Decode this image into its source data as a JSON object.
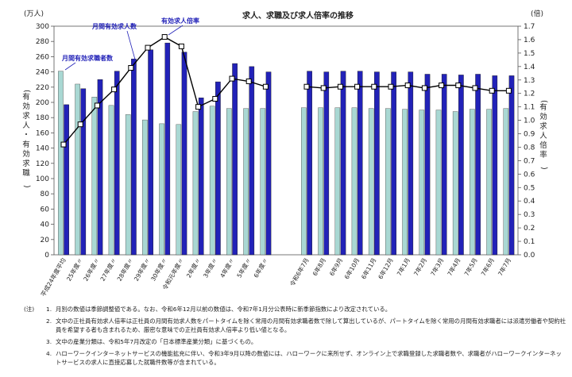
{
  "chart_data": {
    "type": "bar",
    "title": "求人、求職及び求人倍率の推移",
    "left_unit": "(万人)",
    "right_unit": "(倍)",
    "ylabel_left": "(有効求人・有効求職)",
    "ylabel_right": "(有効求人倍率)",
    "ylim_left": [
      0,
      300
    ],
    "ylim_right": [
      0,
      1.7
    ],
    "left_ticks": [
      0,
      20,
      40,
      60,
      80,
      100,
      120,
      140,
      160,
      180,
      200,
      220,
      240,
      260,
      280,
      300
    ],
    "right_ticks": [
      "0.0",
      "0.1",
      "0.2",
      "0.3",
      "0.4",
      "0.5",
      "0.6",
      "0.7",
      "0.8",
      "0.9",
      "1.0",
      "1.1",
      "1.2",
      "1.3",
      "1.4",
      "1.5",
      "1.6",
      "1.7"
    ],
    "categories": [
      "平成24年度平均",
      "25年度〃",
      "26年度〃",
      "27年度〃",
      "28年度〃",
      "29年度〃",
      "30年度〃",
      "令和元年度〃",
      "2年度〃",
      "3年度〃",
      "4年度〃",
      "5年度〃",
      "6年度〃",
      "令和6年7月",
      "8月",
      "9月",
      "10月",
      "11月",
      "12月",
      "令和7年1月",
      "2月",
      "3月",
      "4月",
      "5月",
      "6月",
      "7月"
    ],
    "x_labels": [
      "平成24年度平均",
      "25年度〃",
      "26年度〃",
      "27年度〃",
      "28年度〃",
      "29年度〃",
      "30年度〃",
      "令和元年度〃",
      "2年度〃",
      "3年度〃",
      "4年度〃",
      "5年度〃",
      "6年度〃",
      "令和6年7月",
      "6年8月",
      "6年9月",
      "6年10月",
      "6年11月",
      "6年12月",
      "7年1月",
      "7年2月",
      "7年3月",
      "7年4月",
      "7年5月",
      "7年6月",
      "7年7月"
    ],
    "series": [
      {
        "name": "月間有効求職者数",
        "axis": "left",
        "color": "#a9d8d3",
        "values": [
          241,
          224,
          207,
          196,
          184,
          177,
          172,
          171,
          188,
          195,
          192,
          192,
          192,
          193,
          193,
          193,
          193,
          192,
          192,
          191,
          190,
          190,
          188,
          191,
          191,
          192
        ]
      },
      {
        "name": "月間有効求人数",
        "axis": "left",
        "color": "#2222b8",
        "values": [
          197,
          218,
          230,
          241,
          257,
          269,
          278,
          266,
          206,
          227,
          251,
          247,
          240,
          241,
          240,
          241,
          241,
          240,
          240,
          240,
          237,
          237,
          236,
          237,
          235,
          235
        ]
      },
      {
        "name": "有効求人倍率",
        "axis": "right",
        "color": "#000000",
        "values": [
          0.82,
          0.97,
          1.11,
          1.23,
          1.39,
          1.54,
          1.62,
          1.55,
          1.1,
          1.16,
          1.31,
          1.29,
          1.25,
          1.25,
          1.24,
          1.25,
          1.25,
          1.25,
          1.25,
          1.26,
          1.24,
          1.26,
          1.26,
          1.24,
          1.22,
          1.22
        ]
      }
    ],
    "legend_labels": {
      "seekers": "月間有効求職者数",
      "openings": "月間有効求人数",
      "ratio": "有効求人倍率"
    }
  },
  "notes": [
    {
      "tag": "(注)",
      "num": "1.",
      "text": "月別の数値は季節調整値である。なお、令和6年12月以前の数値は、令和7年1月分公表時に新季節指数により改定されている。"
    },
    {
      "tag": "",
      "num": "2.",
      "text": "文中の正社員有効求人倍率は正社員の月間有効求人数をパートタイムを除く常用の月間有効求職者数で除して算出しているが、パートタイムを除く常用の月間有効求職者には派遣労働者や契約社員を希望する者も含まれるため、厳密な意味での正社員有効求人倍率より低い値となる。"
    },
    {
      "tag": "",
      "num": "3.",
      "text": "文中の産業分類は、令和5年7月改定の「日本標準産業分類」に基づくもの。"
    },
    {
      "tag": "",
      "num": "4.",
      "text": "ハローワークインターネットサービスの機能拡充に伴い、令和3年9月以降の数値には、ハローワークに来所せず、オンライン上で求職登録した求職者数や、求職者がハローワークインターネットサービスの求人に直接応募した就職件数等が含まれている。"
    }
  ]
}
